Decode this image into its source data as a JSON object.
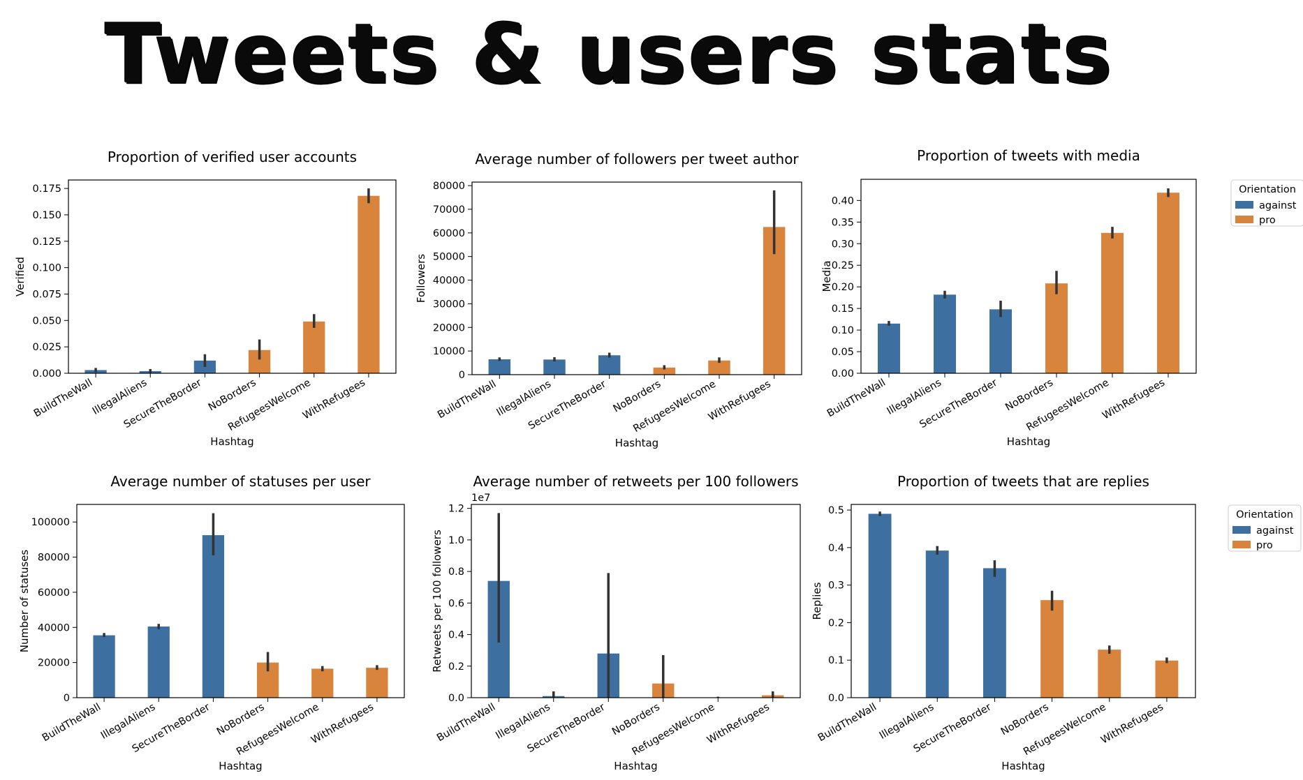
{
  "title": "Tweets & users stats",
  "colors": {
    "against": "#3d70a0",
    "pro": "#d8843d",
    "error": "#333333"
  },
  "legend": {
    "title": "Orientation",
    "entries": [
      "against",
      "pro"
    ]
  },
  "chart_data": [
    {
      "type": "bar",
      "title": "Proportion of verified user accounts",
      "xlabel": "Hashtag",
      "ylabel": "Verified",
      "categories": [
        "BuildTheWall",
        "IllegalAliens",
        "SecureTheBorder",
        "NoBorders",
        "RefugeesWelcome",
        "WithRefugees"
      ],
      "series": [
        {
          "name": "against",
          "values": [
            0.003,
            0.002,
            0.012,
            null,
            null,
            null
          ],
          "err_low": [
            0.001,
            0.0005,
            0.006,
            null,
            null,
            null
          ],
          "err_high": [
            0.005,
            0.004,
            0.018,
            null,
            null,
            null
          ]
        },
        {
          "name": "pro",
          "values": [
            null,
            null,
            null,
            0.022,
            0.049,
            0.168
          ],
          "err_low": [
            null,
            null,
            null,
            0.013,
            0.043,
            0.161
          ],
          "err_high": [
            null,
            null,
            null,
            0.032,
            0.056,
            0.175
          ]
        }
      ],
      "ylim": [
        0,
        0.183
      ],
      "yticks": [
        0.0,
        0.025,
        0.05,
        0.075,
        0.1,
        0.125,
        0.15,
        0.175
      ],
      "ytick_labels": [
        "0.000",
        "0.025",
        "0.050",
        "0.075",
        "0.100",
        "0.125",
        "0.150",
        "0.175"
      ],
      "offset_label": "",
      "legend": false
    },
    {
      "type": "bar",
      "title": "Average number of followers per tweet author",
      "xlabel": "Hashtag",
      "ylabel": "Followers",
      "categories": [
        "BuildTheWall",
        "IllegalAliens",
        "SecureTheBorder",
        "NoBorders",
        "RefugeesWelcome",
        "WithRefugees"
      ],
      "series": [
        {
          "name": "against",
          "values": [
            6500,
            6400,
            8200,
            null,
            null,
            null
          ],
          "err_low": [
            5800,
            5600,
            7200,
            null,
            null,
            null
          ],
          "err_high": [
            7300,
            7400,
            9300,
            null,
            null,
            null
          ]
        },
        {
          "name": "pro",
          "values": [
            null,
            null,
            null,
            3000,
            6000,
            62500
          ],
          "err_low": [
            null,
            null,
            null,
            2200,
            5000,
            51000
          ],
          "err_high": [
            null,
            null,
            null,
            4000,
            7300,
            78000
          ]
        }
      ],
      "ylim": [
        0,
        81500
      ],
      "yticks": [
        0,
        10000,
        20000,
        30000,
        40000,
        50000,
        60000,
        70000,
        80000
      ],
      "ytick_labels": [
        "0",
        "10000",
        "20000",
        "30000",
        "40000",
        "50000",
        "60000",
        "70000",
        "80000"
      ],
      "offset_label": "",
      "legend": false
    },
    {
      "type": "bar",
      "title": "Proportion of tweets with media",
      "xlabel": "Hashtag",
      "ylabel": "Media",
      "categories": [
        "BuildTheWall",
        "IllegalAliens",
        "SecureTheBorder",
        "NoBorders",
        "RefugeesWelcome",
        "WithRefugees"
      ],
      "series": [
        {
          "name": "against",
          "values": [
            0.115,
            0.182,
            0.148,
            null,
            null,
            null
          ],
          "err_low": [
            0.11,
            0.173,
            0.13,
            null,
            null,
            null
          ],
          "err_high": [
            0.121,
            0.191,
            0.168,
            null,
            null,
            null
          ]
        },
        {
          "name": "pro",
          "values": [
            null,
            null,
            null,
            0.208,
            0.325,
            0.418
          ],
          "err_low": [
            null,
            null,
            null,
            0.183,
            0.312,
            0.408
          ],
          "err_high": [
            null,
            null,
            null,
            0.237,
            0.339,
            0.428
          ]
        }
      ],
      "ylim": [
        0,
        0.449
      ],
      "yticks": [
        0.0,
        0.05,
        0.1,
        0.15,
        0.2,
        0.25,
        0.3,
        0.35,
        0.4
      ],
      "ytick_labels": [
        "0.00",
        "0.05",
        "0.10",
        "0.15",
        "0.20",
        "0.25",
        "0.30",
        "0.35",
        "0.40"
      ],
      "offset_label": "",
      "legend": true,
      "legend_position": "outside-upper-right"
    },
    {
      "type": "bar",
      "title": "Average number of statuses per user",
      "xlabel": "Hashtag",
      "ylabel": "Number of statuses",
      "categories": [
        "BuildTheWall",
        "IllegalAliens",
        "SecureTheBorder",
        "NoBorders",
        "RefugeesWelcome",
        "WithRefugees"
      ],
      "series": [
        {
          "name": "against",
          "values": [
            35500,
            40500,
            92500,
            null,
            null,
            null
          ],
          "err_low": [
            34500,
            39000,
            81000,
            null,
            null,
            null
          ],
          "err_high": [
            36800,
            42000,
            105000,
            null,
            null,
            null
          ]
        },
        {
          "name": "pro",
          "values": [
            null,
            null,
            null,
            20000,
            16500,
            17000
          ],
          "err_low": [
            null,
            null,
            null,
            15000,
            15000,
            15800
          ],
          "err_high": [
            null,
            null,
            null,
            26000,
            18000,
            18500
          ]
        }
      ],
      "ylim": [
        0,
        110000
      ],
      "yticks": [
        0,
        20000,
        40000,
        60000,
        80000,
        100000
      ],
      "ytick_labels": [
        "0",
        "20000",
        "40000",
        "60000",
        "80000",
        "100000"
      ],
      "offset_label": "",
      "legend": false
    },
    {
      "type": "bar",
      "title": "Average number of retweets per 100 followers",
      "xlabel": "Hashtag",
      "ylabel": "Retweets per 100 followers",
      "categories": [
        "BuildTheWall",
        "IllegalAliens",
        "SecureTheBorder",
        "NoBorders",
        "RefugeesWelcome",
        "WithRefugees"
      ],
      "series": [
        {
          "name": "against",
          "values": [
            0.74,
            0.01,
            0.28,
            null,
            null,
            null
          ],
          "err_low": [
            0.35,
            0.0,
            0.0,
            null,
            null,
            null
          ],
          "err_high": [
            1.17,
            0.04,
            0.79,
            null,
            null,
            null
          ]
        },
        {
          "name": "pro",
          "values": [
            null,
            null,
            null,
            0.09,
            0.002,
            0.015
          ],
          "err_low": [
            null,
            null,
            null,
            0.0,
            0.0,
            0.0
          ],
          "err_high": [
            null,
            null,
            null,
            0.27,
            0.006,
            0.04
          ]
        }
      ],
      "ylim": [
        0,
        1.225
      ],
      "yticks": [
        0.0,
        0.2,
        0.4,
        0.6,
        0.8,
        1.0,
        1.2
      ],
      "ytick_labels": [
        "0.0",
        "0.2",
        "0.4",
        "0.6",
        "0.8",
        "1.0",
        "1.2"
      ],
      "offset_label": "1e7",
      "legend": false
    },
    {
      "type": "bar",
      "title": "Proportion of tweets that are replies",
      "xlabel": "Hashtag",
      "ylabel": "Replies",
      "categories": [
        "BuildTheWall",
        "IllegalAliens",
        "SecureTheBorder",
        "NoBorders",
        "RefugeesWelcome",
        "WithRefugees"
      ],
      "series": [
        {
          "name": "against",
          "values": [
            0.49,
            0.392,
            0.345,
            null,
            null,
            null
          ],
          "err_low": [
            0.484,
            0.381,
            0.322,
            null,
            null,
            null
          ],
          "err_high": [
            0.496,
            0.404,
            0.366,
            null,
            null,
            null
          ]
        },
        {
          "name": "pro",
          "values": [
            null,
            null,
            null,
            0.26,
            0.128,
            0.099
          ],
          "err_low": [
            null,
            null,
            null,
            0.232,
            0.117,
            0.092
          ],
          "err_high": [
            null,
            null,
            null,
            0.285,
            0.139,
            0.107
          ]
        }
      ],
      "ylim": [
        0,
        0.515
      ],
      "yticks": [
        0.0,
        0.1,
        0.2,
        0.3,
        0.4,
        0.5
      ],
      "ytick_labels": [
        "0.0",
        "0.1",
        "0.2",
        "0.3",
        "0.4",
        "0.5"
      ],
      "offset_label": "",
      "legend": true,
      "legend_position": "outside-upper-right"
    }
  ]
}
